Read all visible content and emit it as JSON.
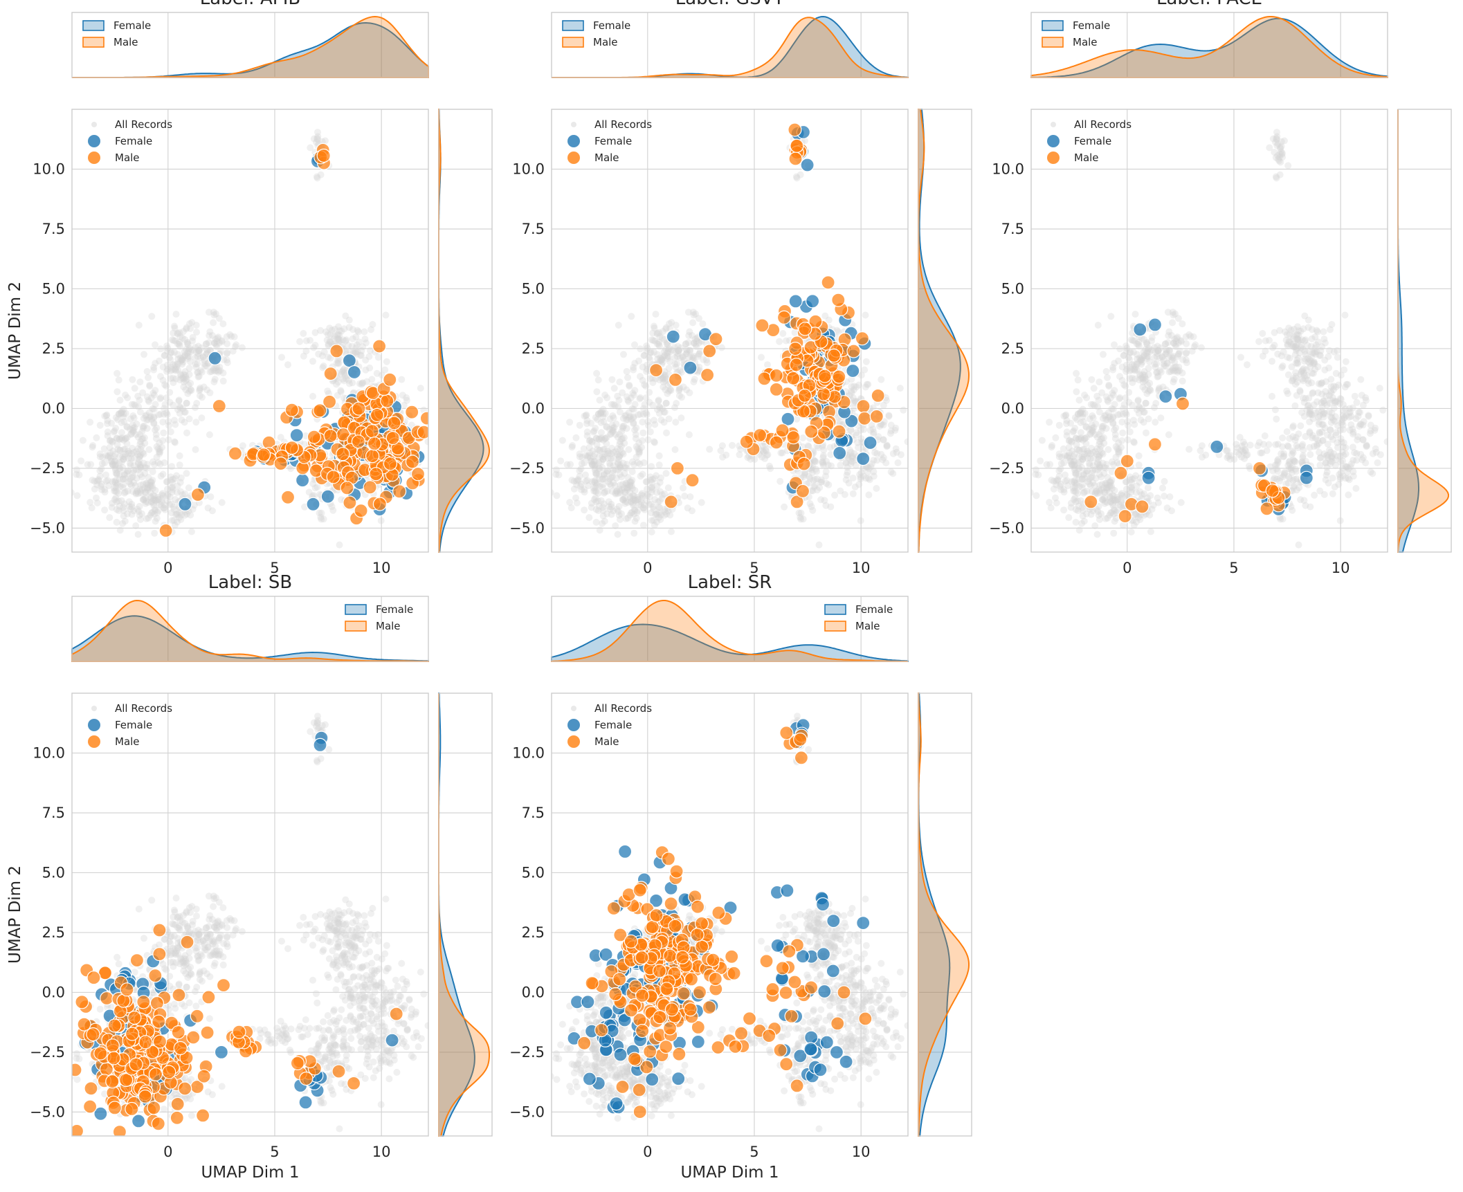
{
  "figure": {
    "xlabel": "UMAP Dim 1",
    "ylabel": "UMAP Dim 2",
    "colors": {
      "female": "#1f77b4",
      "male": "#ff7f0e",
      "background": "#d3d3d3",
      "grid": "#d4d4d4",
      "frame": "#cccccc"
    }
  },
  "chart_data": [
    {
      "type": "scatter",
      "title": "Label: AFIB",
      "xlim": [
        -4.5,
        12.2
      ],
      "ylim": [
        -6,
        12.5
      ],
      "xticks": [
        "0",
        "5",
        "10"
      ],
      "yticks": [
        "-5.0",
        "-2.5",
        "0.0",
        "2.5",
        "5.0",
        "7.5",
        "10.0"
      ],
      "legend": {
        "scatter": [
          "All Records",
          "Female",
          "Male"
        ],
        "kde": [
          "Female",
          "Male"
        ],
        "kde_position": "upper-left"
      },
      "series": [
        {
          "name": "Female",
          "clusters": [
            [
              9.5,
              -1.8,
              1.4,
              1.1,
              60
            ],
            [
              5.5,
              -1.9,
              0.8,
              0.2,
              10
            ],
            [
              7.0,
              10.5,
              0.15,
              0.2,
              2
            ]
          ],
          "points": [
            [
              2.2,
              2.1
            ],
            [
              0.8,
              -4.0
            ],
            [
              1.7,
              -3.3
            ],
            [
              8.5,
              2.0
            ],
            [
              6.3,
              -3.0
            ],
            [
              6.8,
              -4.0
            ]
          ]
        },
        {
          "name": "Male",
          "clusters": [
            [
              9.3,
              -1.7,
              1.5,
              1.1,
              160
            ],
            [
              5.2,
              -1.9,
              0.9,
              0.2,
              25
            ],
            [
              7.2,
              10.5,
              0.15,
              0.15,
              4
            ],
            [
              10.0,
              0.3,
              0.5,
              0.5,
              15
            ]
          ],
          "points": [
            [
              2.4,
              0.1
            ],
            [
              -0.1,
              -5.1
            ],
            [
              1.4,
              -3.6
            ],
            [
              7.9,
              2.4
            ],
            [
              9.9,
              2.6
            ]
          ]
        }
      ]
    },
    {
      "type": "scatter",
      "title": "Label: GSVT",
      "xlim": [
        -4.5,
        12.2
      ],
      "ylim": [
        -6,
        12.5
      ],
      "xticks": [
        "0",
        "5",
        "10"
      ],
      "yticks": [
        "-5.0",
        "-2.5",
        "0.0",
        "2.5",
        "5.0",
        "7.5",
        "10.0"
      ],
      "legend": {
        "scatter": [
          "All Records",
          "Female",
          "Male"
        ],
        "kde": [
          "Female",
          "Male"
        ],
        "kde_position": "upper-left"
      },
      "series": [
        {
          "name": "Female",
          "clusters": [
            [
              8.2,
              1.3,
              1.0,
              1.4,
              45
            ],
            [
              7.1,
              10.8,
              0.2,
              0.4,
              5
            ],
            [
              8.8,
              -1.5,
              0.8,
              0.4,
              6
            ]
          ],
          "points": [
            [
              1.2,
              3.0
            ],
            [
              2.7,
              3.1
            ],
            [
              2.0,
              1.7
            ],
            [
              6.8,
              -3.3
            ],
            [
              10.1,
              -2.1
            ]
          ]
        },
        {
          "name": "Male",
          "clusters": [
            [
              8.0,
              1.5,
              1.1,
              1.3,
              120
            ],
            [
              7.0,
              10.8,
              0.2,
              0.4,
              10
            ],
            [
              6.0,
              -1.3,
              0.9,
              0.3,
              12
            ],
            [
              7.2,
              -2.3,
              0.3,
              0.6,
              8
            ]
          ],
          "points": [
            [
              0.4,
              1.6
            ],
            [
              1.3,
              1.2
            ],
            [
              2.9,
              2.4
            ],
            [
              3.2,
              2.9
            ],
            [
              2.8,
              1.4
            ],
            [
              1.4,
              -2.5
            ],
            [
              2.1,
              -3.0
            ],
            [
              1.1,
              -3.9
            ],
            [
              7.0,
              -3.9
            ]
          ]
        }
      ]
    },
    {
      "type": "scatter",
      "title": "Label: PACE",
      "xlim": [
        -4.5,
        12.2
      ],
      "ylim": [
        -6,
        12.5
      ],
      "xticks": [
        "0",
        "5",
        "10"
      ],
      "yticks": [
        "-5.0",
        "-2.5",
        "0.0",
        "2.5",
        "5.0",
        "7.5",
        "10.0"
      ],
      "legend": {
        "scatter": [
          "All Records",
          "Female",
          "Male"
        ],
        "kde": [
          "Female",
          "Male"
        ],
        "kde_position": "upper-left"
      },
      "series": [
        {
          "name": "Female",
          "clusters": [
            [
              7.0,
              -3.8,
              0.35,
              0.25,
              8
            ]
          ],
          "points": [
            [
              0.6,
              3.3
            ],
            [
              1.3,
              3.5
            ],
            [
              1.8,
              0.5
            ],
            [
              2.5,
              0.6
            ],
            [
              1.0,
              -2.7
            ],
            [
              1.0,
              -2.9
            ],
            [
              4.2,
              -1.6
            ],
            [
              8.4,
              -2.6
            ],
            [
              8.4,
              -2.9
            ],
            [
              6.3,
              -2.6
            ]
          ]
        },
        {
          "name": "Male",
          "clusters": [
            [
              6.8,
              -3.6,
              0.35,
              0.35,
              14
            ]
          ],
          "points": [
            [
              2.6,
              0.2
            ],
            [
              1.3,
              -1.5
            ],
            [
              0.0,
              -2.2
            ],
            [
              -0.3,
              -2.7
            ],
            [
              -1.7,
              -3.9
            ],
            [
              -0.1,
              -4.5
            ],
            [
              0.2,
              -4.0
            ],
            [
              0.7,
              -4.1
            ],
            [
              6.2,
              -2.5
            ]
          ]
        }
      ]
    },
    {
      "type": "scatter",
      "title": "Label: SB",
      "xlim": [
        -4.5,
        12.2
      ],
      "ylim": [
        -6,
        12.5
      ],
      "xticks": [
        "0",
        "5",
        "10"
      ],
      "yticks": [
        "-5.0",
        "-2.5",
        "0.0",
        "2.5",
        "5.0",
        "7.5",
        "10.0"
      ],
      "legend": {
        "scatter": [
          "All Records",
          "Female",
          "Male"
        ],
        "kde": [
          "Female",
          "Male"
        ],
        "kde_position": "upper-right"
      },
      "series": [
        {
          "name": "Female",
          "clusters": [
            [
              -1.5,
              -2.4,
              1.2,
              1.4,
              60
            ],
            [
              6.8,
              -3.5,
              0.4,
              0.5,
              7
            ],
            [
              7.0,
              10.5,
              0.2,
              0.15,
              2
            ]
          ],
          "points": [
            [
              -1.8,
              0.5
            ],
            [
              -2.0,
              0.8
            ],
            [
              -0.7,
              1.3
            ],
            [
              10.5,
              -2.0
            ],
            [
              3.5,
              -2.2
            ],
            [
              7.0,
              -4.1
            ],
            [
              2.5,
              -2.5
            ]
          ]
        },
        {
          "name": "Male",
          "clusters": [
            [
              -1.4,
              -2.5,
              1.3,
              1.3,
              220
            ],
            [
              3.5,
              -2.0,
              0.3,
              0.25,
              14
            ],
            [
              6.6,
              -3.2,
              0.3,
              0.4,
              7
            ]
          ],
          "points": [
            [
              -0.4,
              2.6
            ],
            [
              0.9,
              2.1
            ],
            [
              -0.4,
              1.6
            ],
            [
              -0.6,
              0.7
            ],
            [
              2.6,
              0.3
            ],
            [
              1.9,
              -0.2
            ],
            [
              8.7,
              -3.8
            ],
            [
              8.0,
              -3.3
            ],
            [
              10.7,
              -0.9
            ]
          ]
        }
      ]
    },
    {
      "type": "scatter",
      "title": "Label: SR",
      "xlim": [
        -4.5,
        12.2
      ],
      "ylim": [
        -6,
        12.5
      ],
      "xticks": [
        "0",
        "5",
        "10"
      ],
      "yticks": [
        "-5.0",
        "-2.5",
        "0.0",
        "2.5",
        "5.0",
        "7.5",
        "10.0"
      ],
      "legend": {
        "scatter": [
          "All Records",
          "Female",
          "Male"
        ],
        "kde": [
          "Female",
          "Male"
        ],
        "kde_position": "upper-right"
      },
      "series": [
        {
          "name": "Female",
          "clusters": [
            [
              0.8,
              1.0,
              1.3,
              1.6,
              70
            ],
            [
              -1.3,
              -1.5,
              1.3,
              1.6,
              35
            ],
            [
              7.2,
              1.0,
              1.0,
              1.8,
              18
            ],
            [
              7.3,
              -2.8,
              1.2,
              0.5,
              12
            ],
            [
              7.0,
              10.8,
              0.2,
              0.4,
              4
            ]
          ],
          "points": [
            [
              -2.3,
              -3.8
            ],
            [
              -1.6,
              -4.8
            ],
            [
              8.2,
              3.9
            ],
            [
              10.1,
              2.9
            ],
            [
              9.3,
              -2.9
            ],
            [
              -3.3,
              -0.4
            ],
            [
              -2.8,
              -0.4
            ]
          ]
        },
        {
          "name": "Male",
          "clusters": [
            [
              1.1,
              1.4,
              1.2,
              1.4,
              170
            ],
            [
              -0.5,
              -1.3,
              1.2,
              1.6,
              40
            ],
            [
              7.0,
              10.6,
              0.2,
              0.4,
              6
            ],
            [
              6.8,
              0.5,
              0.8,
              1.6,
              14
            ],
            [
              5.0,
              -1.8,
              0.8,
              0.4,
              8
            ]
          ],
          "points": [
            [
              3.3,
              -2.3
            ],
            [
              8.9,
              -1.3
            ],
            [
              9.2,
              0.0
            ],
            [
              10.2,
              -1.1
            ],
            [
              6.5,
              -3.0
            ],
            [
              7.0,
              -3.9
            ]
          ]
        }
      ]
    }
  ]
}
